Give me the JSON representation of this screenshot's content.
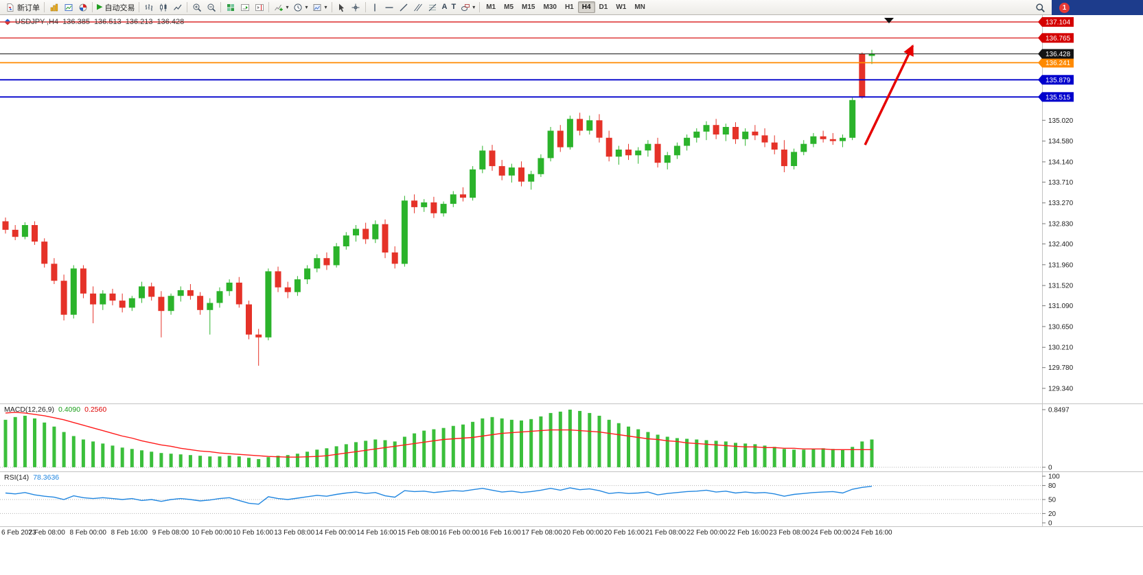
{
  "toolbar": {
    "new_order_label": "新订单",
    "autotrading_label": "自动交易",
    "timeframes": [
      "M1",
      "M5",
      "M15",
      "M30",
      "H1",
      "H4",
      "D1",
      "W1",
      "MN"
    ],
    "active_timeframe": "H4",
    "notification_count": "1",
    "glyphs": {
      "play": "▶",
      "dropdown": "▾",
      "text_tool": "A",
      "label_tool": "T"
    },
    "icon_names": [
      "new-order",
      "charts",
      "new-chart",
      "profiles",
      "autotrading-play",
      "ohlc-bars",
      "candlesticks",
      "line-chart",
      "zoom-in",
      "zoom-out",
      "tile-windows",
      "auto-scroll",
      "chart-shift",
      "indicators",
      "periods",
      "templates",
      "cursor",
      "crosshair",
      "vertical-line",
      "horizontal-line",
      "trendline",
      "channel",
      "fibonacci",
      "text",
      "label",
      "shapes",
      "search",
      "notification"
    ]
  },
  "chart_header": {
    "symbol": "USDJPY-,H4",
    "open": "136.385",
    "high": "136.513",
    "low": "136.213",
    "close": "136.428"
  },
  "indicators": {
    "macd": {
      "name": "MACD(12,26,9)",
      "main": "0.4090",
      "signal": "0.2560"
    },
    "rsi": {
      "name": "RSI(14)",
      "value": "78.3636"
    }
  },
  "colors": {
    "bull": "#2bb32b",
    "bear": "#e53228",
    "macd_hist": "#3bbf3b",
    "macd_signal": "#ff1a1a",
    "rsi_line": "#2086e0",
    "arrow": "#e60000",
    "level_red": "#d40000",
    "level_blue": "#0000cc",
    "level_orange": "#ff8a00"
  },
  "chart_data": [
    {
      "type": "candlestick",
      "symbol": "USDJPY-,H4",
      "timeframe": "H4",
      "candles": [
        [
          132.88,
          132.96,
          132.62,
          132.7
        ],
        [
          132.7,
          132.8,
          132.48,
          132.55
        ],
        [
          132.55,
          132.86,
          132.5,
          132.8
        ],
        [
          132.8,
          132.88,
          132.38,
          132.45
        ],
        [
          132.45,
          132.52,
          131.9,
          131.98
        ],
        [
          131.98,
          132.1,
          131.55,
          131.62
        ],
        [
          131.62,
          131.75,
          130.78,
          130.9
        ],
        [
          130.9,
          131.95,
          130.82,
          131.88
        ],
        [
          131.88,
          131.95,
          131.25,
          131.35
        ],
        [
          131.35,
          131.5,
          130.72,
          131.12
        ],
        [
          131.12,
          131.42,
          131.0,
          131.35
        ],
        [
          131.35,
          131.45,
          131.1,
          131.2
        ],
        [
          131.2,
          131.35,
          130.95,
          131.05
        ],
        [
          131.05,
          131.3,
          130.98,
          131.25
        ],
        [
          131.25,
          131.6,
          131.15,
          131.5
        ],
        [
          131.5,
          131.58,
          131.2,
          131.28
        ],
        [
          131.28,
          131.4,
          130.42,
          130.98
        ],
        [
          130.98,
          131.35,
          130.9,
          131.3
        ],
        [
          131.3,
          131.5,
          131.18,
          131.42
        ],
        [
          131.42,
          131.55,
          131.22,
          131.3
        ],
        [
          131.3,
          131.38,
          130.9,
          131.0
        ],
        [
          131.0,
          131.25,
          130.48,
          131.15
        ],
        [
          131.15,
          131.48,
          131.05,
          131.4
        ],
        [
          131.4,
          131.65,
          131.3,
          131.58
        ],
        [
          131.58,
          131.7,
          131.05,
          131.12
        ],
        [
          131.12,
          131.2,
          130.38,
          130.48
        ],
        [
          130.48,
          130.6,
          129.82,
          130.42
        ],
        [
          130.42,
          131.88,
          130.36,
          131.82
        ],
        [
          131.82,
          131.92,
          131.38,
          131.48
        ],
        [
          131.48,
          131.6,
          131.25,
          131.38
        ],
        [
          131.38,
          131.72,
          131.3,
          131.65
        ],
        [
          131.65,
          131.95,
          131.55,
          131.88
        ],
        [
          131.88,
          132.18,
          131.8,
          132.1
        ],
        [
          132.1,
          132.22,
          131.85,
          131.95
        ],
        [
          131.95,
          132.42,
          131.9,
          132.35
        ],
        [
          132.35,
          132.65,
          132.28,
          132.58
        ],
        [
          132.58,
          132.8,
          132.45,
          132.72
        ],
        [
          132.72,
          132.85,
          132.4,
          132.5
        ],
        [
          132.5,
          132.9,
          132.42,
          132.82
        ],
        [
          132.82,
          132.92,
          132.1,
          132.22
        ],
        [
          132.22,
          132.35,
          131.88,
          131.98
        ],
        [
          131.98,
          133.42,
          131.92,
          133.32
        ],
        [
          133.32,
          133.45,
          133.05,
          133.18
        ],
        [
          133.18,
          133.35,
          133.08,
          133.28
        ],
        [
          133.28,
          133.4,
          132.95,
          133.05
        ],
        [
          133.05,
          133.3,
          132.98,
          133.25
        ],
        [
          133.25,
          133.52,
          133.18,
          133.45
        ],
        [
          133.45,
          133.6,
          133.3,
          133.38
        ],
        [
          133.38,
          134.05,
          133.32,
          133.98
        ],
        [
          133.98,
          134.48,
          133.9,
          134.38
        ],
        [
          134.38,
          134.5,
          133.95,
          134.05
        ],
        [
          134.05,
          134.18,
          133.75,
          133.85
        ],
        [
          133.85,
          134.1,
          133.7,
          134.02
        ],
        [
          134.02,
          134.15,
          133.62,
          133.72
        ],
        [
          133.72,
          133.95,
          133.55,
          133.88
        ],
        [
          133.88,
          134.3,
          133.82,
          134.22
        ],
        [
          134.22,
          134.88,
          134.15,
          134.8
        ],
        [
          134.8,
          134.92,
          134.35,
          134.45
        ],
        [
          134.45,
          135.12,
          134.4,
          135.05
        ],
        [
          135.05,
          135.18,
          134.7,
          134.8
        ],
        [
          134.8,
          135.12,
          134.72,
          135.02
        ],
        [
          135.02,
          135.15,
          134.55,
          134.65
        ],
        [
          134.65,
          134.8,
          134.15,
          134.25
        ],
        [
          134.25,
          134.48,
          134.08,
          134.4
        ],
        [
          134.4,
          134.52,
          134.18,
          134.28
        ],
        [
          134.28,
          134.45,
          134.1,
          134.38
        ],
        [
          134.38,
          134.6,
          134.25,
          134.52
        ],
        [
          134.52,
          134.65,
          134.02,
          134.12
        ],
        [
          134.12,
          134.35,
          133.98,
          134.28
        ],
        [
          134.28,
          134.55,
          134.2,
          134.48
        ],
        [
          134.48,
          134.72,
          134.38,
          134.65
        ],
        [
          134.65,
          134.85,
          134.55,
          134.78
        ],
        [
          134.78,
          135.0,
          134.6,
          134.92
        ],
        [
          134.92,
          135.05,
          134.62,
          134.72
        ],
        [
          134.72,
          134.95,
          134.58,
          134.88
        ],
        [
          134.88,
          134.98,
          134.52,
          134.62
        ],
        [
          134.62,
          134.85,
          134.48,
          134.78
        ],
        [
          134.78,
          134.92,
          134.6,
          134.7
        ],
        [
          134.7,
          134.85,
          134.45,
          134.55
        ],
        [
          134.55,
          134.7,
          134.3,
          134.4
        ],
        [
          134.4,
          134.6,
          133.92,
          134.05
        ],
        [
          134.05,
          134.42,
          133.98,
          134.35
        ],
        [
          134.35,
          134.6,
          134.28,
          134.52
        ],
        [
          134.52,
          134.75,
          134.45,
          134.68
        ],
        [
          134.68,
          134.8,
          134.55,
          134.62
        ],
        [
          134.62,
          134.75,
          134.5,
          134.58
        ],
        [
          134.58,
          134.72,
          134.45,
          134.65
        ],
        [
          134.65,
          135.5,
          134.6,
          135.45
        ],
        [
          136.42,
          136.46,
          135.48,
          135.52
        ],
        [
          136.385,
          136.513,
          136.213,
          136.428
        ]
      ],
      "y_axis": [
        {
          "price": 135.02,
          "label": "135.020"
        },
        {
          "price": 134.58,
          "label": "134.580"
        },
        {
          "price": 134.14,
          "label": "134.140"
        },
        {
          "price": 133.71,
          "label": "133.710"
        },
        {
          "price": 133.27,
          "label": "133.270"
        },
        {
          "price": 132.83,
          "label": "132.830"
        },
        {
          "price": 132.4,
          "label": "132.400"
        },
        {
          "price": 131.96,
          "label": "131.960"
        },
        {
          "price": 131.52,
          "label": "131.520"
        },
        {
          "price": 131.09,
          "label": "131.090"
        },
        {
          "price": 130.65,
          "label": "130.650"
        },
        {
          "price": 130.21,
          "label": "130.210"
        },
        {
          "price": 129.78,
          "label": "129.780"
        },
        {
          "price": 129.34,
          "label": "129.340"
        }
      ],
      "levels": [
        {
          "price": 137.104,
          "label": "137.104",
          "color": "#d40000",
          "width": 1.2
        },
        {
          "price": 136.765,
          "label": "136.765",
          "color": "#d40000",
          "width": 1.2
        },
        {
          "price": 136.241,
          "label": "136.241",
          "color": "#ff8a00",
          "width": 1.8
        },
        {
          "price": 135.879,
          "label": "135.879",
          "color": "#0000cc",
          "width": 1.8
        },
        {
          "price": 135.515,
          "label": "135.515",
          "color": "#0000cc",
          "width": 1.8
        }
      ],
      "current_price": {
        "price": 136.428,
        "label": "136.428",
        "color": "#141414"
      },
      "x_axis": [
        "6 Feb 2023",
        "7 Feb 08:00",
        "8 Feb 00:00",
        "8 Feb 16:00",
        "9 Feb 08:00",
        "10 Feb 00:00",
        "10 Feb 16:00",
        "13 Feb 08:00",
        "14 Feb 00:00",
        "14 Feb 16:00",
        "15 Feb 08:00",
        "16 Feb 00:00",
        "16 Feb 16:00",
        "17 Feb 08:00",
        "20 Feb 00:00",
        "20 Feb 16:00",
        "21 Feb 08:00",
        "22 Feb 00:00",
        "22 Feb 16:00",
        "23 Feb 08:00",
        "24 Feb 00:00",
        "24 Feb 16:00"
      ],
      "annotations": [
        {
          "type": "arrow",
          "from": {
            "bar": 88.3,
            "price": 134.5
          },
          "to": {
            "bar": 93.2,
            "price": 136.6
          }
        }
      ]
    },
    {
      "type": "bar",
      "name": "MACD(12,26,9)",
      "main_value": 0.409,
      "signal_value": 0.256,
      "values": [
        0.7,
        0.74,
        0.76,
        0.72,
        0.66,
        0.6,
        0.52,
        0.46,
        0.41,
        0.38,
        0.35,
        0.32,
        0.29,
        0.27,
        0.25,
        0.23,
        0.21,
        0.2,
        0.19,
        0.18,
        0.17,
        0.16,
        0.16,
        0.17,
        0.16,
        0.14,
        0.12,
        0.15,
        0.17,
        0.18,
        0.2,
        0.23,
        0.26,
        0.28,
        0.31,
        0.34,
        0.37,
        0.39,
        0.41,
        0.4,
        0.38,
        0.45,
        0.5,
        0.54,
        0.56,
        0.58,
        0.61,
        0.63,
        0.67,
        0.72,
        0.74,
        0.72,
        0.7,
        0.69,
        0.71,
        0.75,
        0.8,
        0.82,
        0.85,
        0.83,
        0.8,
        0.76,
        0.7,
        0.65,
        0.6,
        0.56,
        0.52,
        0.48,
        0.45,
        0.43,
        0.42,
        0.41,
        0.4,
        0.39,
        0.38,
        0.36,
        0.35,
        0.34,
        0.32,
        0.3,
        0.27,
        0.26,
        0.26,
        0.27,
        0.28,
        0.27,
        0.26,
        0.3,
        0.38,
        0.41
      ],
      "signal": [
        0.8,
        0.81,
        0.8,
        0.78,
        0.76,
        0.73,
        0.7,
        0.66,
        0.62,
        0.58,
        0.54,
        0.5,
        0.46,
        0.43,
        0.39,
        0.36,
        0.33,
        0.31,
        0.28,
        0.26,
        0.24,
        0.23,
        0.21,
        0.2,
        0.19,
        0.18,
        0.17,
        0.16,
        0.155,
        0.15,
        0.15,
        0.155,
        0.16,
        0.17,
        0.19,
        0.21,
        0.23,
        0.25,
        0.27,
        0.29,
        0.31,
        0.33,
        0.35,
        0.37,
        0.39,
        0.41,
        0.42,
        0.43,
        0.44,
        0.46,
        0.48,
        0.5,
        0.51,
        0.52,
        0.53,
        0.54,
        0.55,
        0.55,
        0.55,
        0.54,
        0.53,
        0.52,
        0.5,
        0.48,
        0.46,
        0.44,
        0.42,
        0.41,
        0.39,
        0.38,
        0.36,
        0.35,
        0.34,
        0.33,
        0.32,
        0.31,
        0.3,
        0.3,
        0.29,
        0.29,
        0.28,
        0.28,
        0.27,
        0.27,
        0.27,
        0.26,
        0.26,
        0.26,
        0.26,
        0.26
      ],
      "y_axis": [
        {
          "value": 0.8497,
          "label": "0.8497"
        },
        {
          "value": 0,
          "label": "0"
        }
      ]
    },
    {
      "type": "line",
      "name": "RSI(14)",
      "value": 78.3636,
      "values": [
        64,
        62,
        65,
        60,
        57,
        55,
        50,
        58,
        54,
        52,
        54,
        52,
        50,
        52,
        48,
        50,
        46,
        50,
        52,
        50,
        47,
        49,
        52,
        54,
        48,
        42,
        40,
        56,
        52,
        50,
        53,
        56,
        59,
        57,
        61,
        64,
        66,
        63,
        65,
        58,
        55,
        69,
        67,
        68,
        65,
        67,
        69,
        68,
        71,
        74,
        70,
        66,
        68,
        65,
        67,
        70,
        74,
        70,
        75,
        71,
        73,
        69,
        63,
        65,
        63,
        64,
        66,
        60,
        63,
        65,
        67,
        68,
        70,
        66,
        68,
        64,
        66,
        64,
        65,
        62,
        57,
        61,
        63,
        65,
        66,
        67,
        64,
        72,
        76,
        78.36
      ],
      "levels": [
        80,
        50,
        20
      ],
      "y_axis": [
        {
          "value": 100,
          "label": "100"
        },
        {
          "value": 80,
          "label": "80"
        },
        {
          "value": 50,
          "label": "50"
        },
        {
          "value": 20,
          "label": "20"
        },
        {
          "value": 0,
          "label": "0"
        }
      ]
    }
  ]
}
